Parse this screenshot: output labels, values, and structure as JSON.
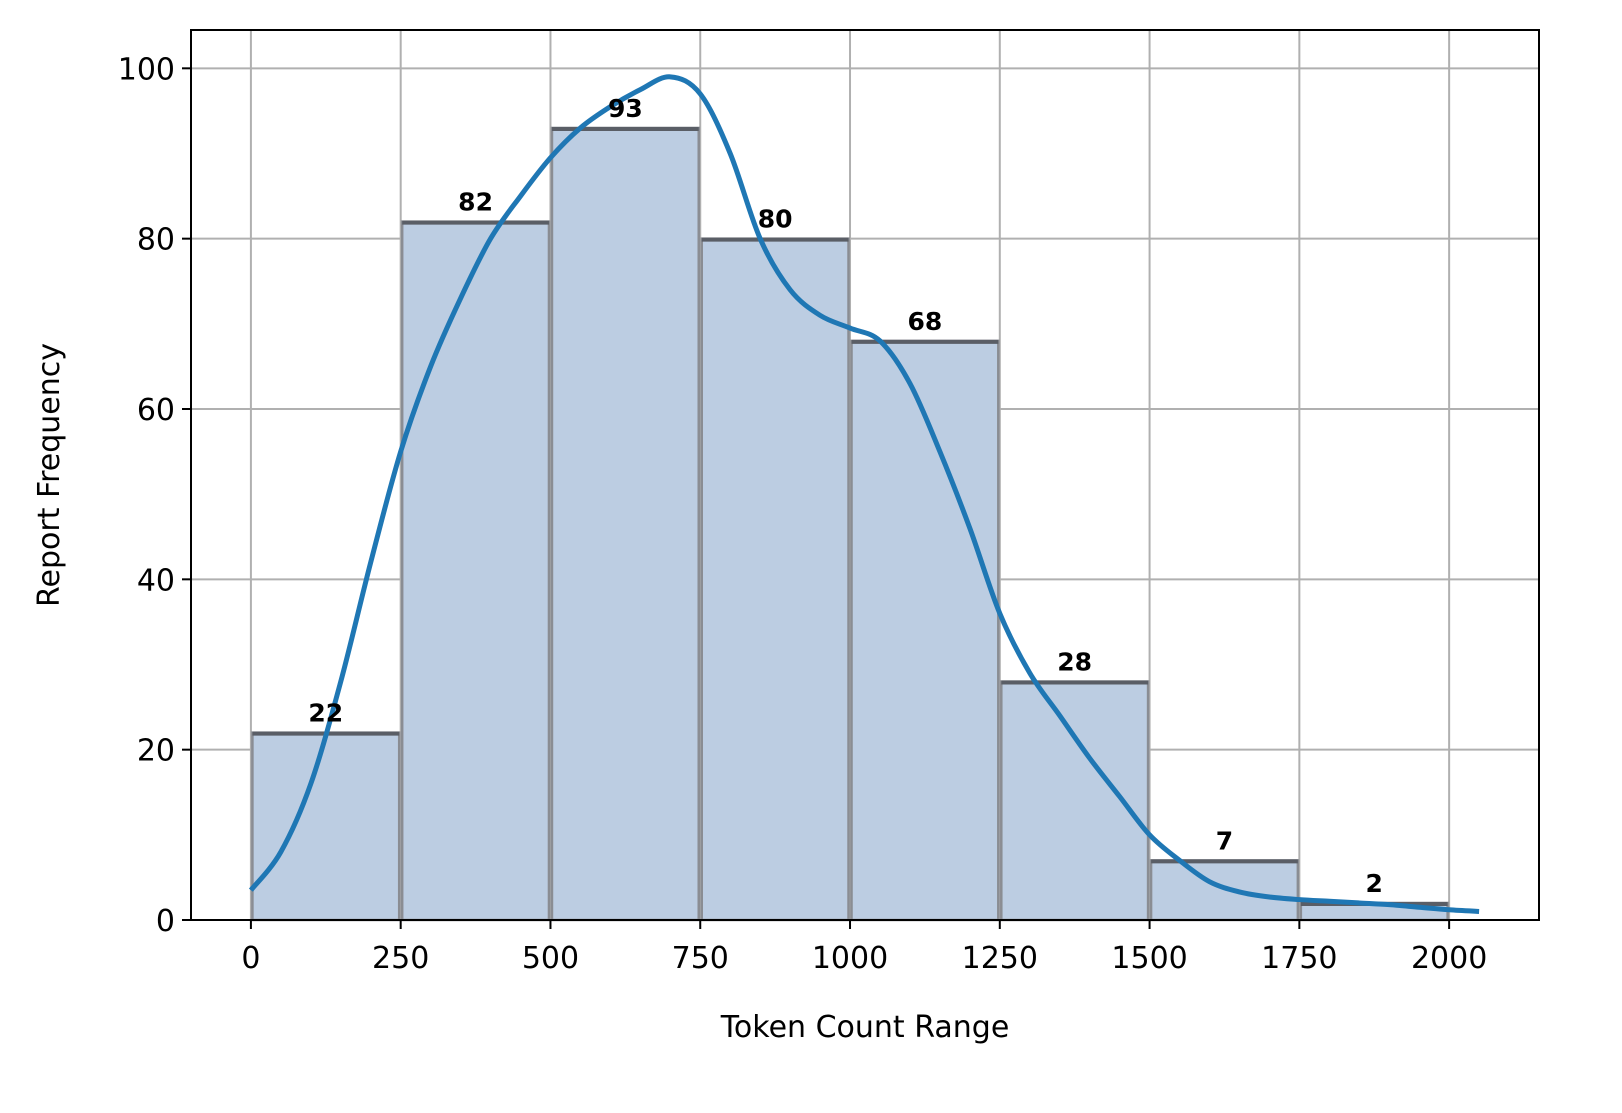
{
  "chart_data": {
    "type": "bar",
    "title": "",
    "xlabel": "Token Count Range",
    "ylabel": "Report Frequency",
    "bins": [
      {
        "start": 0,
        "end": 250,
        "value": 22
      },
      {
        "start": 250,
        "end": 500,
        "value": 82
      },
      {
        "start": 500,
        "end": 750,
        "value": 93
      },
      {
        "start": 750,
        "end": 1000,
        "value": 80
      },
      {
        "start": 1000,
        "end": 1250,
        "value": 68
      },
      {
        "start": 1250,
        "end": 1500,
        "value": 28
      },
      {
        "start": 1500,
        "end": 1750,
        "value": 7
      },
      {
        "start": 1750,
        "end": 2000,
        "value": 2
      }
    ],
    "density_curve": {
      "x": [
        0,
        50,
        100,
        150,
        200,
        250,
        300,
        350,
        400,
        450,
        500,
        550,
        600,
        650,
        700,
        750,
        800,
        850,
        900,
        950,
        1000,
        1050,
        1100,
        1150,
        1200,
        1250,
        1300,
        1350,
        1400,
        1450,
        1500,
        1550,
        1600,
        1650,
        1700,
        1750,
        1800,
        1850,
        1900,
        1950,
        2000,
        2050
      ],
      "y": [
        3.5,
        8,
        16,
        28,
        42,
        55,
        65,
        73,
        80,
        85,
        89.5,
        93,
        95.5,
        97.5,
        99,
        97,
        90,
        80,
        74,
        71,
        69.5,
        68,
        63,
        55,
        46,
        36,
        29,
        24,
        19,
        14.5,
        10,
        7,
        4.5,
        3.3,
        2.7,
        2.4,
        2.2,
        2,
        1.8,
        1.5,
        1.2,
        1
      ],
      "color": "#1f77b4"
    },
    "xlim": [
      -100,
      2150
    ],
    "ylim": [
      0,
      104.5
    ],
    "x_ticks": [
      0,
      250,
      500,
      750,
      1000,
      1250,
      1500,
      1750,
      2000
    ],
    "y_ticks": [
      0,
      20,
      40,
      60,
      80,
      100
    ],
    "grid": true,
    "bar_color": "#bccde2",
    "bar_edge_color": "#5a5e66",
    "legend": "none"
  }
}
